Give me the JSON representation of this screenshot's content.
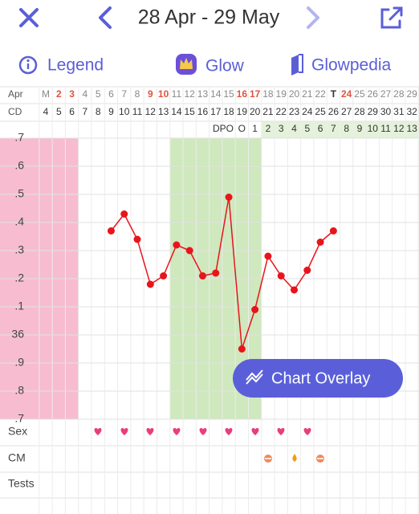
{
  "header": {
    "title": "28 Apr - 29 May"
  },
  "tabs": [
    "Legend",
    "Glow",
    "Glowpedia"
  ],
  "chart_data": {
    "type": "line",
    "month_label": "Apr",
    "cd_label": "CD",
    "dpo_label": "DPO",
    "categories": [
      "M",
      "2",
      "3",
      "4",
      "5",
      "6",
      "7",
      "8",
      "9",
      "10",
      "11",
      "12",
      "13",
      "14",
      "15",
      "16",
      "17",
      "18",
      "19",
      "20",
      "21",
      "22",
      "T",
      "24",
      "25",
      "26",
      "27",
      "28",
      "29"
    ],
    "category_colors": [
      "#888",
      "#e0533f",
      "#e0533f",
      "#888",
      "#888",
      "#888",
      "#888",
      "#888",
      "#e0533f",
      "#e0533f",
      "#888",
      "#888",
      "#888",
      "#888",
      "#888",
      "#e0533f",
      "#e0533f",
      "#888",
      "#888",
      "#888",
      "#888",
      "#888",
      "#333",
      "#e0533f",
      "#888",
      "#888",
      "#888",
      "#888",
      "#888"
    ],
    "cycle_days": [
      4,
      5,
      6,
      7,
      8,
      9,
      10,
      11,
      12,
      13,
      14,
      15,
      16,
      17,
      18,
      19,
      20,
      21,
      22,
      23,
      24,
      25,
      26,
      27,
      28,
      29,
      30,
      31,
      32
    ],
    "dpo": [
      null,
      null,
      null,
      null,
      null,
      null,
      null,
      null,
      null,
      null,
      null,
      null,
      null,
      null,
      null,
      "O",
      1,
      2,
      3,
      4,
      5,
      6,
      7,
      8,
      9,
      10,
      11,
      12,
      13
    ],
    "values": [
      null,
      null,
      null,
      null,
      null,
      36.37,
      36.43,
      36.34,
      36.18,
      36.21,
      36.32,
      36.3,
      36.21,
      36.22,
      36.49,
      35.95,
      36.09,
      36.28,
      36.21,
      36.16,
      36.23,
      36.33,
      36.37,
      null,
      null,
      null,
      null,
      null,
      null
    ],
    "color": "#e8141c",
    "ylim": [
      35.7,
      36.7
    ],
    "yticks": [
      {
        "value": 36.7,
        "label": ".7"
      },
      {
        "value": 36.6,
        "label": ".6"
      },
      {
        "value": 36.5,
        "label": ".5"
      },
      {
        "value": 36.4,
        "label": ".4"
      },
      {
        "value": 36.3,
        "label": ".3"
      },
      {
        "value": 36.2,
        "label": ".2"
      },
      {
        "value": 36.1,
        "label": ".1"
      },
      36,
      {
        "value": 35.9,
        "label": ".9"
      },
      {
        "value": 35.8,
        "label": ".8"
      },
      {
        "value": 35.7,
        "label": ".7"
      }
    ],
    "grid": true
  },
  "rows": [
    "Sex",
    "CM",
    "Tests"
  ],
  "button": "Chart Overlay"
}
